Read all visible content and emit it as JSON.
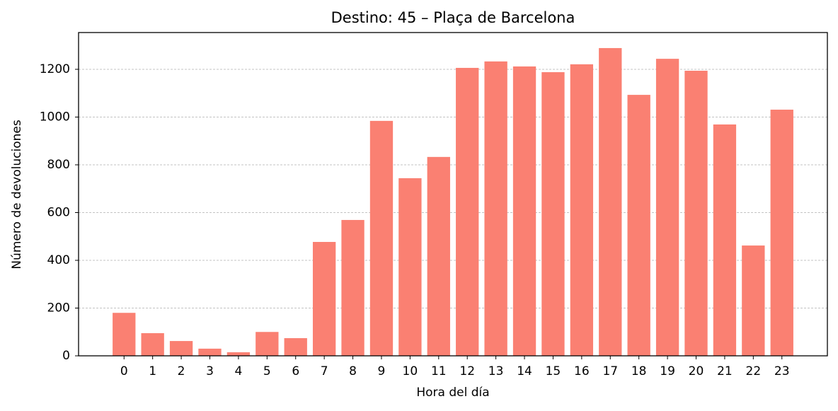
{
  "chart_data": {
    "type": "bar",
    "title": "Destino: 45 – Plaça de Barcelona",
    "x_label": "Hora del día",
    "y_label": "Número de devoluciones",
    "categories": [
      "0",
      "1",
      "2",
      "3",
      "4",
      "5",
      "6",
      "7",
      "8",
      "9",
      "10",
      "11",
      "12",
      "13",
      "14",
      "15",
      "16",
      "17",
      "18",
      "19",
      "20",
      "21",
      "22",
      "23"
    ],
    "values": [
      180,
      95,
      62,
      30,
      15,
      100,
      74,
      477,
      569,
      984,
      744,
      833,
      1206,
      1233,
      1212,
      1188,
      1221,
      1289,
      1093,
      1244,
      1194,
      969,
      462,
      1031
    ],
    "color": "#fa8072",
    "ylim": [
      0,
      1354
    ],
    "yticks": [
      0,
      200,
      400,
      600,
      800,
      1000,
      1200
    ],
    "grid": true
  }
}
